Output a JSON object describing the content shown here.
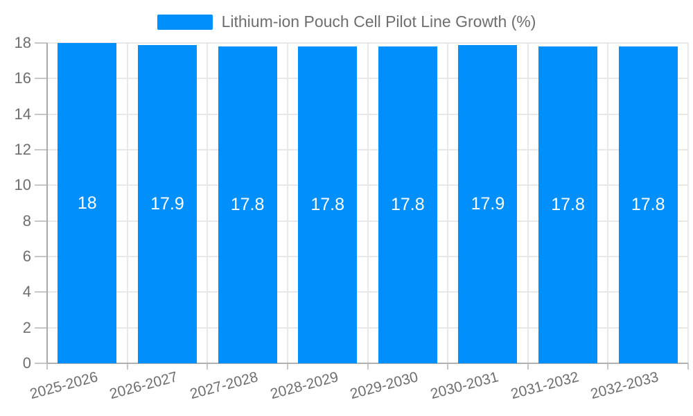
{
  "chart_data": {
    "type": "bar",
    "title": "Lithium-ion Pouch Cell Pilot Line Growth (%)",
    "categories": [
      "2025-2026",
      "2026-2027",
      "2027-2028",
      "2028-2029",
      "2029-2030",
      "2030-2031",
      "2031-2032",
      "2032-2033"
    ],
    "values": [
      18,
      17.9,
      17.8,
      17.8,
      17.8,
      17.9,
      17.8,
      17.8
    ],
    "data_labels": [
      "18",
      "17.9",
      "17.8",
      "17.8",
      "17.8",
      "17.9",
      "17.8",
      "17.8"
    ],
    "xlabel": "",
    "ylabel": "",
    "ylim": [
      0,
      18
    ],
    "yticks": [
      0,
      2,
      4,
      6,
      8,
      10,
      12,
      14,
      16,
      18
    ],
    "legend_position": "top",
    "grid": true,
    "colors": {
      "bar": "#008FFB",
      "data_label": "#ffffff",
      "axis_text": "#6e6e6e",
      "gridline": "#e8e8e8",
      "axis_line": "#b0b0b0",
      "tick": "#c6c6c6",
      "background": "#ffffff"
    }
  }
}
